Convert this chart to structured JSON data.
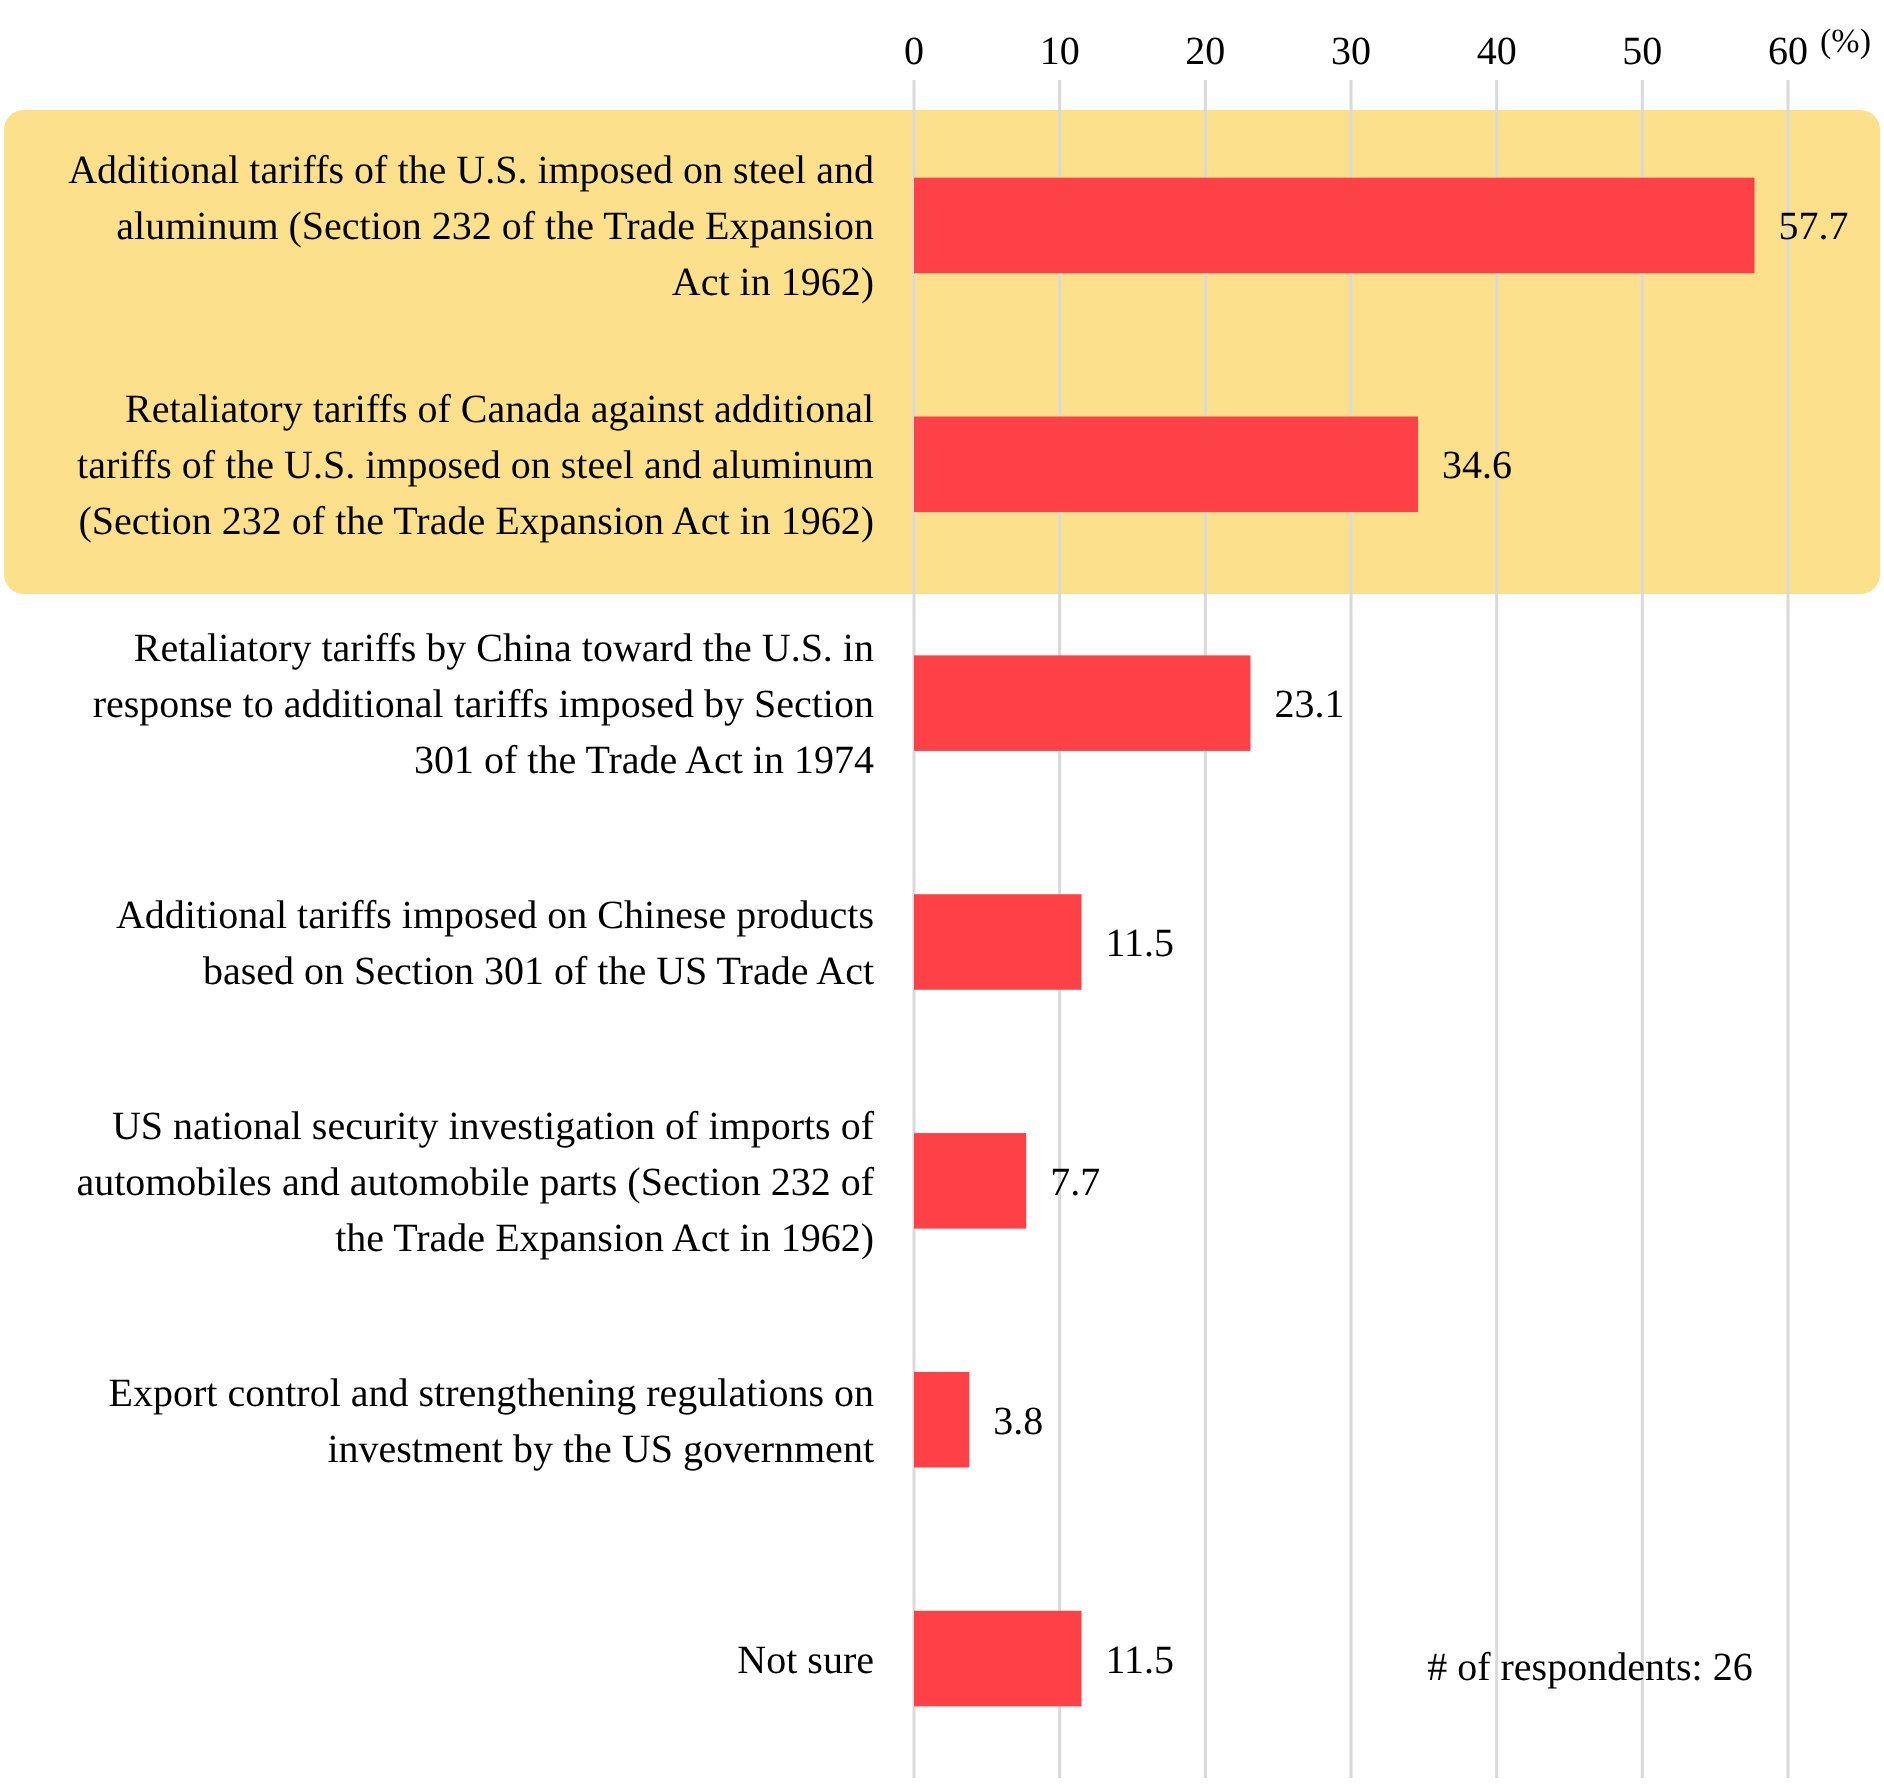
{
  "chart_data": {
    "type": "bar",
    "orientation": "horizontal",
    "xlabel": "(%)",
    "categories": [
      "Additional tariffs of the U.S. imposed on steel and aluminum (Section 232 of the Trade Expansion Act in 1962)",
      "Retaliatory tariffs of Canada against additional tariffs of the U.S. imposed on steel and aluminum (Section 232 of the Trade Expansion Act in 1962)",
      "Retaliatory tariffs by China toward the U.S. in response to additional tariffs imposed by Section 301 of the Trade Act in 1974",
      "Additional tariffs imposed on Chinese products based on Section 301 of the US Trade Act",
      "US national security investigation of imports of automobiles and automobile parts (Section 232 of the Trade Expansion Act in 1962)",
      "Export control and strengthening regulations on investment by the US government",
      "Not sure"
    ],
    "values": [
      57.7,
      34.6,
      23.1,
      11.5,
      7.7,
      3.8,
      11.5
    ],
    "color": "#fe4146",
    "xlim": [
      0,
      60
    ],
    "xticks": [
      0,
      10,
      20,
      30,
      40,
      50,
      60
    ],
    "grid": "x",
    "data_labels": true,
    "annotations": [
      "# of respondents: 26"
    ]
  }
}
